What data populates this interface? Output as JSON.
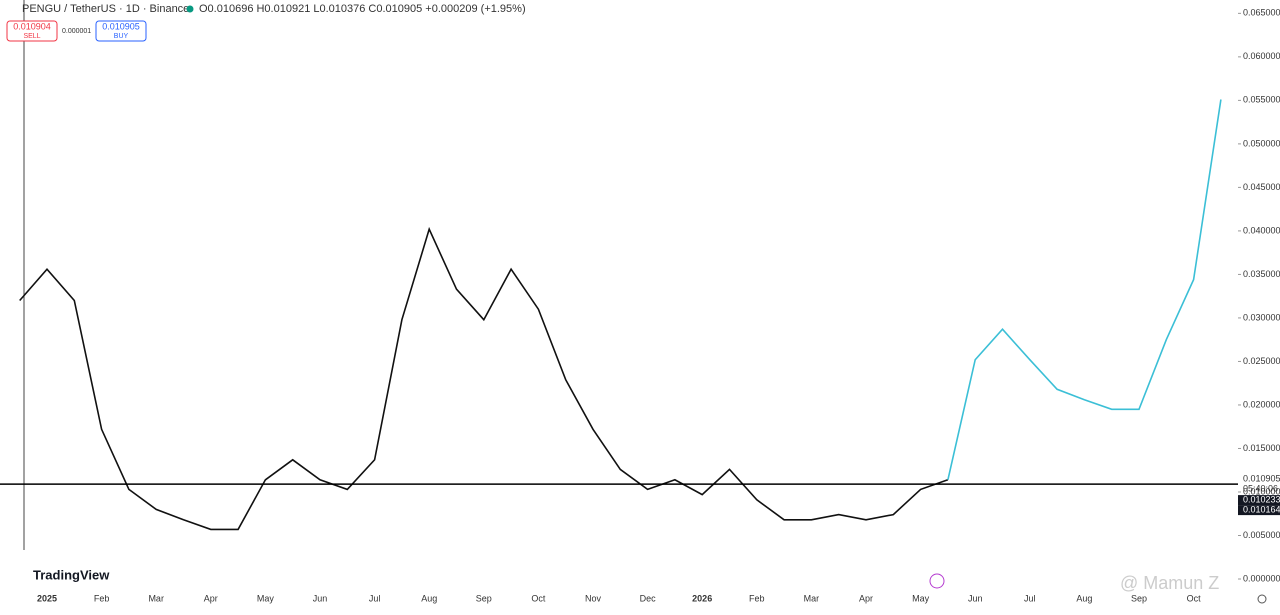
{
  "header": {
    "symbol": "PENGU / TetherUS · 1D · Binance",
    "ohlc": "O0.010696 H0.010921 L0.010376 C0.010905 +0.000209 (+1.95%)",
    "sell_price": "0.010904",
    "sell_label": "SELL",
    "spread": "0.000001",
    "buy_price": "0.010905",
    "buy_label": "BUY"
  },
  "chart_data": {
    "type": "line",
    "categories": [
      null,
      "2025",
      null,
      "Feb",
      null,
      "Mar",
      null,
      "Apr",
      null,
      "May",
      null,
      "Jun",
      null,
      "Jul",
      null,
      "Aug",
      null,
      "Sep",
      null,
      "Oct",
      null,
      "Nov",
      null,
      "Dec",
      null,
      "2026",
      null,
      "Feb",
      null,
      "Mar",
      null,
      "Apr",
      null,
      "May",
      null,
      "Jun",
      null,
      "Jul",
      null,
      "Aug",
      null,
      "Sep",
      null,
      "Oct",
      null
    ],
    "series": [
      {
        "name": "PENGU",
        "color": "#111111",
        "values": [
          0.032,
          0.0356,
          0.032,
          0.0172,
          0.0103,
          0.008,
          0.0068,
          0.0057,
          0.0057,
          0.0114,
          0.0137,
          0.0114,
          0.0103,
          0.0137,
          0.0298,
          0.0402,
          0.0333,
          0.0298,
          0.0356,
          0.031,
          0.0229,
          0.0172,
          0.0126,
          0.0103,
          0.0114,
          0.0097,
          0.0126,
          0.0091,
          0.0068,
          0.0068,
          0.0074,
          0.0068,
          0.0074,
          0.0103,
          0.0114,
          null,
          null,
          null,
          null,
          null,
          null,
          null,
          null,
          null,
          null
        ]
      },
      {
        "name": "Projection",
        "color": "#3bbfd6",
        "values": [
          null,
          null,
          null,
          null,
          null,
          null,
          null,
          null,
          null,
          null,
          null,
          null,
          null,
          null,
          null,
          null,
          null,
          null,
          null,
          null,
          null,
          null,
          null,
          null,
          null,
          null,
          null,
          null,
          null,
          null,
          null,
          null,
          null,
          null,
          0.0114,
          0.0252,
          0.0287,
          0.0252,
          0.0218,
          0.0206,
          0.0195,
          0.0195,
          0.0275,
          0.0344,
          0.0551
        ]
      }
    ],
    "ylim": [
      0,
      0.0655
    ],
    "yticks": [
      {
        "value": 0,
        "label": "0.000000"
      },
      {
        "value": 0.005,
        "label": "0.005000"
      },
      {
        "value": 0.01,
        "label": "0.010000"
      },
      {
        "value": 0.015,
        "label": "0.015000"
      },
      {
        "value": 0.02,
        "label": "0.020000"
      },
      {
        "value": 0.025,
        "label": "0.025000"
      },
      {
        "value": 0.03,
        "label": "0.030000"
      },
      {
        "value": 0.035,
        "label": "0.035000"
      },
      {
        "value": 0.04,
        "label": "0.040000"
      },
      {
        "value": 0.045,
        "label": "0.045000"
      },
      {
        "value": 0.05,
        "label": "0.050000"
      },
      {
        "value": 0.055,
        "label": "0.055000"
      },
      {
        "value": 0.06,
        "label": "0.060000"
      },
      {
        "value": 0.065,
        "label": "0.065000"
      }
    ],
    "last_price": 0.010905,
    "countdown": "05:40:06",
    "price_tags": [
      "0.010233",
      "0.010164"
    ]
  },
  "footer": {
    "logo": "TradingView",
    "watermark": "@ Mamun Z"
  }
}
